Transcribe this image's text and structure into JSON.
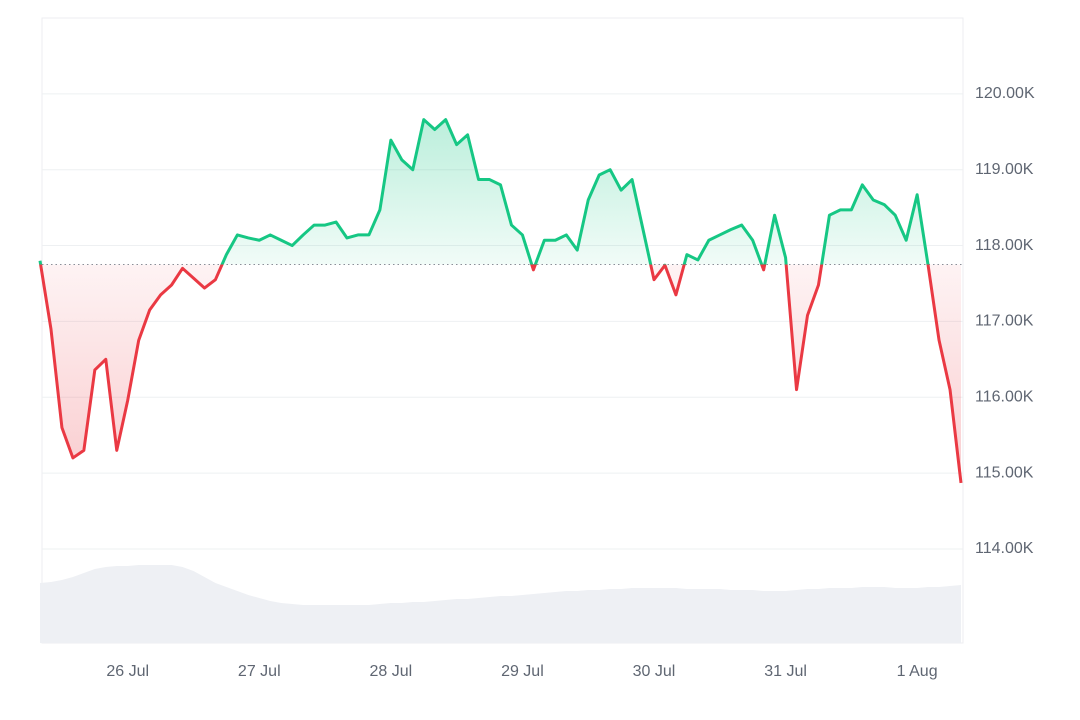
{
  "chart_data": {
    "type": "baseline-line",
    "categories": [
      null,
      null,
      null,
      null,
      null,
      null,
      null,
      null,
      "26 Jul",
      null,
      null,
      null,
      null,
      null,
      null,
      null,
      null,
      null,
      null,
      null,
      "27 Jul",
      null,
      null,
      null,
      null,
      null,
      null,
      null,
      null,
      null,
      null,
      null,
      "28 Jul",
      null,
      null,
      null,
      null,
      null,
      null,
      null,
      null,
      null,
      null,
      null,
      "29 Jul",
      null,
      null,
      null,
      null,
      null,
      null,
      null,
      null,
      null,
      null,
      null,
      "30 Jul",
      null,
      null,
      null,
      null,
      null,
      null,
      null,
      null,
      null,
      null,
      null,
      "31 Jul",
      null,
      null,
      null,
      null,
      null,
      null,
      null,
      null,
      null,
      null,
      null,
      "1 Aug",
      null,
      null,
      null,
      null
    ],
    "values": [
      117.8,
      116.9,
      115.6,
      115.2,
      115.3,
      116.36,
      116.5,
      115.3,
      115.96,
      116.75,
      117.15,
      117.35,
      117.48,
      117.7,
      117.57,
      117.44,
      117.55,
      117.88,
      118.14,
      118.1,
      118.07,
      118.14,
      118.07,
      118.0,
      118.14,
      118.27,
      118.27,
      118.31,
      118.1,
      118.14,
      118.14,
      118.47,
      119.39,
      119.13,
      119.0,
      119.66,
      119.53,
      119.66,
      119.33,
      119.46,
      118.87,
      118.87,
      118.8,
      118.27,
      118.14,
      117.68,
      118.07,
      118.07,
      118.14,
      117.94,
      118.6,
      118.93,
      119.0,
      118.73,
      118.87,
      118.21,
      117.55,
      117.74,
      117.35,
      117.88,
      117.81,
      118.07,
      118.14,
      118.21,
      118.27,
      118.07,
      117.68,
      118.4,
      117.84,
      116.1,
      117.08,
      117.48,
      118.4,
      118.47,
      118.47,
      118.8,
      118.6,
      118.54,
      118.4,
      118.07,
      118.67,
      117.74,
      116.75,
      116.1,
      114.87
    ],
    "baseline": 117.75,
    "up_color": "#16c784",
    "down_color": "#ea3943",
    "volume": [
      60,
      61,
      63,
      66,
      70,
      74,
      76,
      77,
      77,
      78,
      78,
      78,
      78,
      76,
      72,
      66,
      60,
      56,
      52,
      48,
      45,
      42,
      40,
      39,
      38,
      38,
      38,
      38,
      38,
      38,
      38,
      39,
      40,
      40,
      41,
      41,
      42,
      43,
      44,
      44,
      45,
      46,
      47,
      47,
      48,
      49,
      50,
      51,
      52,
      52,
      53,
      53,
      54,
      54,
      55,
      55,
      55,
      55,
      55,
      54,
      54,
      54,
      54,
      53,
      53,
      53,
      52,
      52,
      52,
      53,
      54,
      54,
      55,
      55,
      55,
      56,
      56,
      56,
      55,
      55,
      55,
      56,
      56,
      57,
      58
    ],
    "volume_color": "#eef0f4",
    "ylim": [
      112.76,
      121
    ],
    "yticks": [
      {
        "value": 114,
        "label": "114.00K"
      },
      {
        "value": 115,
        "label": "115.00K"
      },
      {
        "value": 116,
        "label": "116.00K"
      },
      {
        "value": 117,
        "label": "117.00K"
      },
      {
        "value": 118,
        "label": "118.00K"
      },
      {
        "value": 119,
        "label": "119.00K"
      },
      {
        "value": 120,
        "label": "120.00K"
      }
    ],
    "y2lim": [
      0,
      100
    ],
    "grid": true
  }
}
